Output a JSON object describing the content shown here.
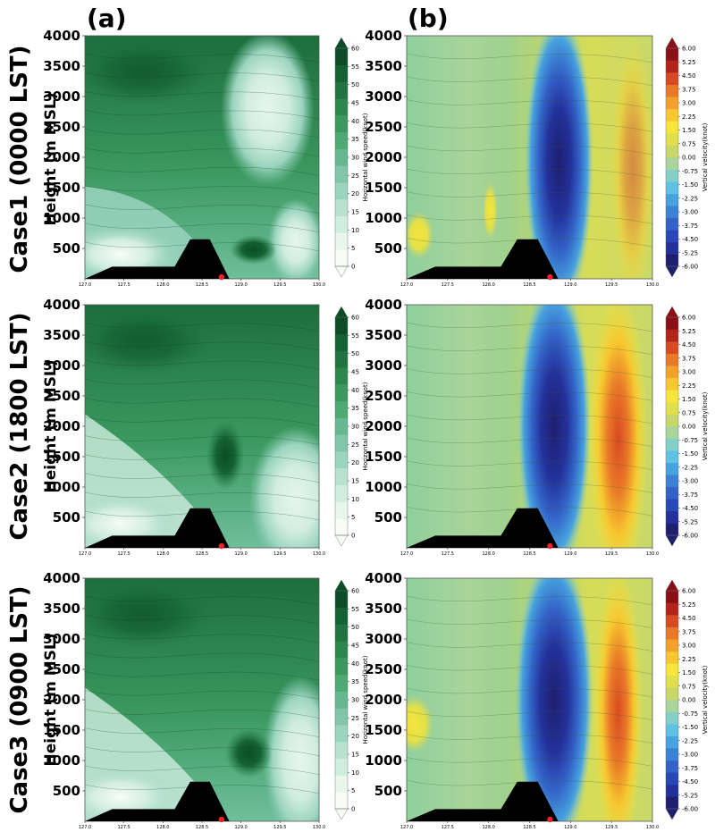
{
  "panel_letters": [
    "(a)",
    "(b)"
  ],
  "rows": [
    {
      "case_label": "Case1 (0000 LST)",
      "height_label": "Height (m MSL)"
    },
    {
      "case_label": "Case2 (1800 LST)",
      "height_label": "Height (m MSL)"
    },
    {
      "case_label": "Case3 (0900 LST)",
      "height_label": "Height (m MSL)"
    }
  ],
  "colorbars": {
    "wind": {
      "label": "Horizontal wind speed(knot)",
      "ticks": [
        "0",
        "5",
        "10",
        "15",
        "20",
        "25",
        "30",
        "35",
        "40",
        "45",
        "50",
        "55",
        "60"
      ],
      "colors": [
        "#f7fcf5",
        "#e8f6ec",
        "#d1ede0",
        "#b7e2d0",
        "#9bd4bf",
        "#7fc6ab",
        "#65b890",
        "#4ea973",
        "#3b985f",
        "#2c874f",
        "#1f7440",
        "#146133",
        "#0b4d27"
      ]
    },
    "vertical": {
      "label": "Vertical velocity(knot)",
      "ticks": [
        "-6.00",
        "-5.25",
        "-4.50",
        "-3.75",
        "-3.00",
        "-2.25",
        "-1.50",
        "-0.75",
        "0.00",
        "0.75",
        "1.50",
        "2.25",
        "3.00",
        "3.75",
        "4.50",
        "5.25",
        "6.00"
      ],
      "colors": [
        "#1e1f6e",
        "#23319a",
        "#2a47b8",
        "#3363c8",
        "#3c82d4",
        "#47a2de",
        "#5fc2e4",
        "#83d0c8",
        "#a9d49a",
        "#c7d769",
        "#e2e04a",
        "#f6e53a",
        "#f7c72f",
        "#f3a12b",
        "#e97828",
        "#d84a22",
        "#b5231d",
        "#8b0f17"
      ]
    }
  },
  "chart_data": [
    {
      "type": "heatmap",
      "panel": "Case1 (a)",
      "variable": "Horizontal wind speed(knot)",
      "x_ticks": [
        "127.0",
        "127.5",
        "128.0",
        "128.5",
        "129.0",
        "129.5",
        "130.0"
      ],
      "y_ticks": [
        500,
        1000,
        1500,
        2000,
        2500,
        3000,
        3500,
        4000
      ],
      "ylim": [
        0,
        4000
      ],
      "zlim": [
        0,
        60
      ],
      "terrain_peak_m": 650,
      "marker_x": 128.75
    },
    {
      "type": "heatmap",
      "panel": "Case1 (b)",
      "variable": "Vertical velocity(knot)",
      "x_ticks": [
        "127.0",
        "127.5",
        "128.0",
        "128.5",
        "129.0",
        "129.5",
        "130.0"
      ],
      "y_ticks": [
        500,
        1000,
        1500,
        2000,
        2500,
        3000,
        3500,
        4000
      ],
      "ylim": [
        0,
        4000
      ],
      "zlim": [
        -6,
        6
      ],
      "terrain_peak_m": 650,
      "marker_x": 128.75
    },
    {
      "type": "heatmap",
      "panel": "Case2 (a)",
      "variable": "Horizontal wind speed(knot)",
      "x_ticks": [
        "127.0",
        "127.5",
        "128.0",
        "128.5",
        "129.0",
        "129.5",
        "130.0"
      ],
      "y_ticks": [
        500,
        1000,
        1500,
        2000,
        2500,
        3000,
        3500,
        4000
      ],
      "ylim": [
        0,
        4000
      ],
      "zlim": [
        0,
        60
      ],
      "terrain_peak_m": 650,
      "marker_x": 128.75
    },
    {
      "type": "heatmap",
      "panel": "Case2 (b)",
      "variable": "Vertical velocity(knot)",
      "x_ticks": [
        "127.0",
        "127.5",
        "128.0",
        "128.5",
        "129.0",
        "129.5",
        "130.0"
      ],
      "y_ticks": [
        500,
        1000,
        1500,
        2000,
        2500,
        3000,
        3500,
        4000
      ],
      "ylim": [
        0,
        4000
      ],
      "zlim": [
        -6,
        6
      ],
      "terrain_peak_m": 650,
      "marker_x": 128.75
    },
    {
      "type": "heatmap",
      "panel": "Case3 (a)",
      "variable": "Horizontal wind speed(knot)",
      "x_ticks": [
        "127.0",
        "127.5",
        "128.0",
        "128.5",
        "129.0",
        "129.5",
        "130.0"
      ],
      "y_ticks": [
        500,
        1000,
        1500,
        2000,
        2500,
        3000,
        3500,
        4000
      ],
      "ylim": [
        0,
        4000
      ],
      "zlim": [
        0,
        60
      ],
      "terrain_peak_m": 650,
      "marker_x": 128.75
    },
    {
      "type": "heatmap",
      "panel": "Case3 (b)",
      "variable": "Vertical velocity(knot)",
      "x_ticks": [
        "127.0",
        "127.5",
        "128.0",
        "128.5",
        "129.0",
        "129.5",
        "130.0"
      ],
      "y_ticks": [
        500,
        1000,
        1500,
        2000,
        2500,
        3000,
        3500,
        4000
      ],
      "ylim": [
        0,
        4000
      ],
      "zlim": [
        -6,
        6
      ],
      "terrain_peak_m": 650,
      "marker_x": 128.75
    }
  ]
}
